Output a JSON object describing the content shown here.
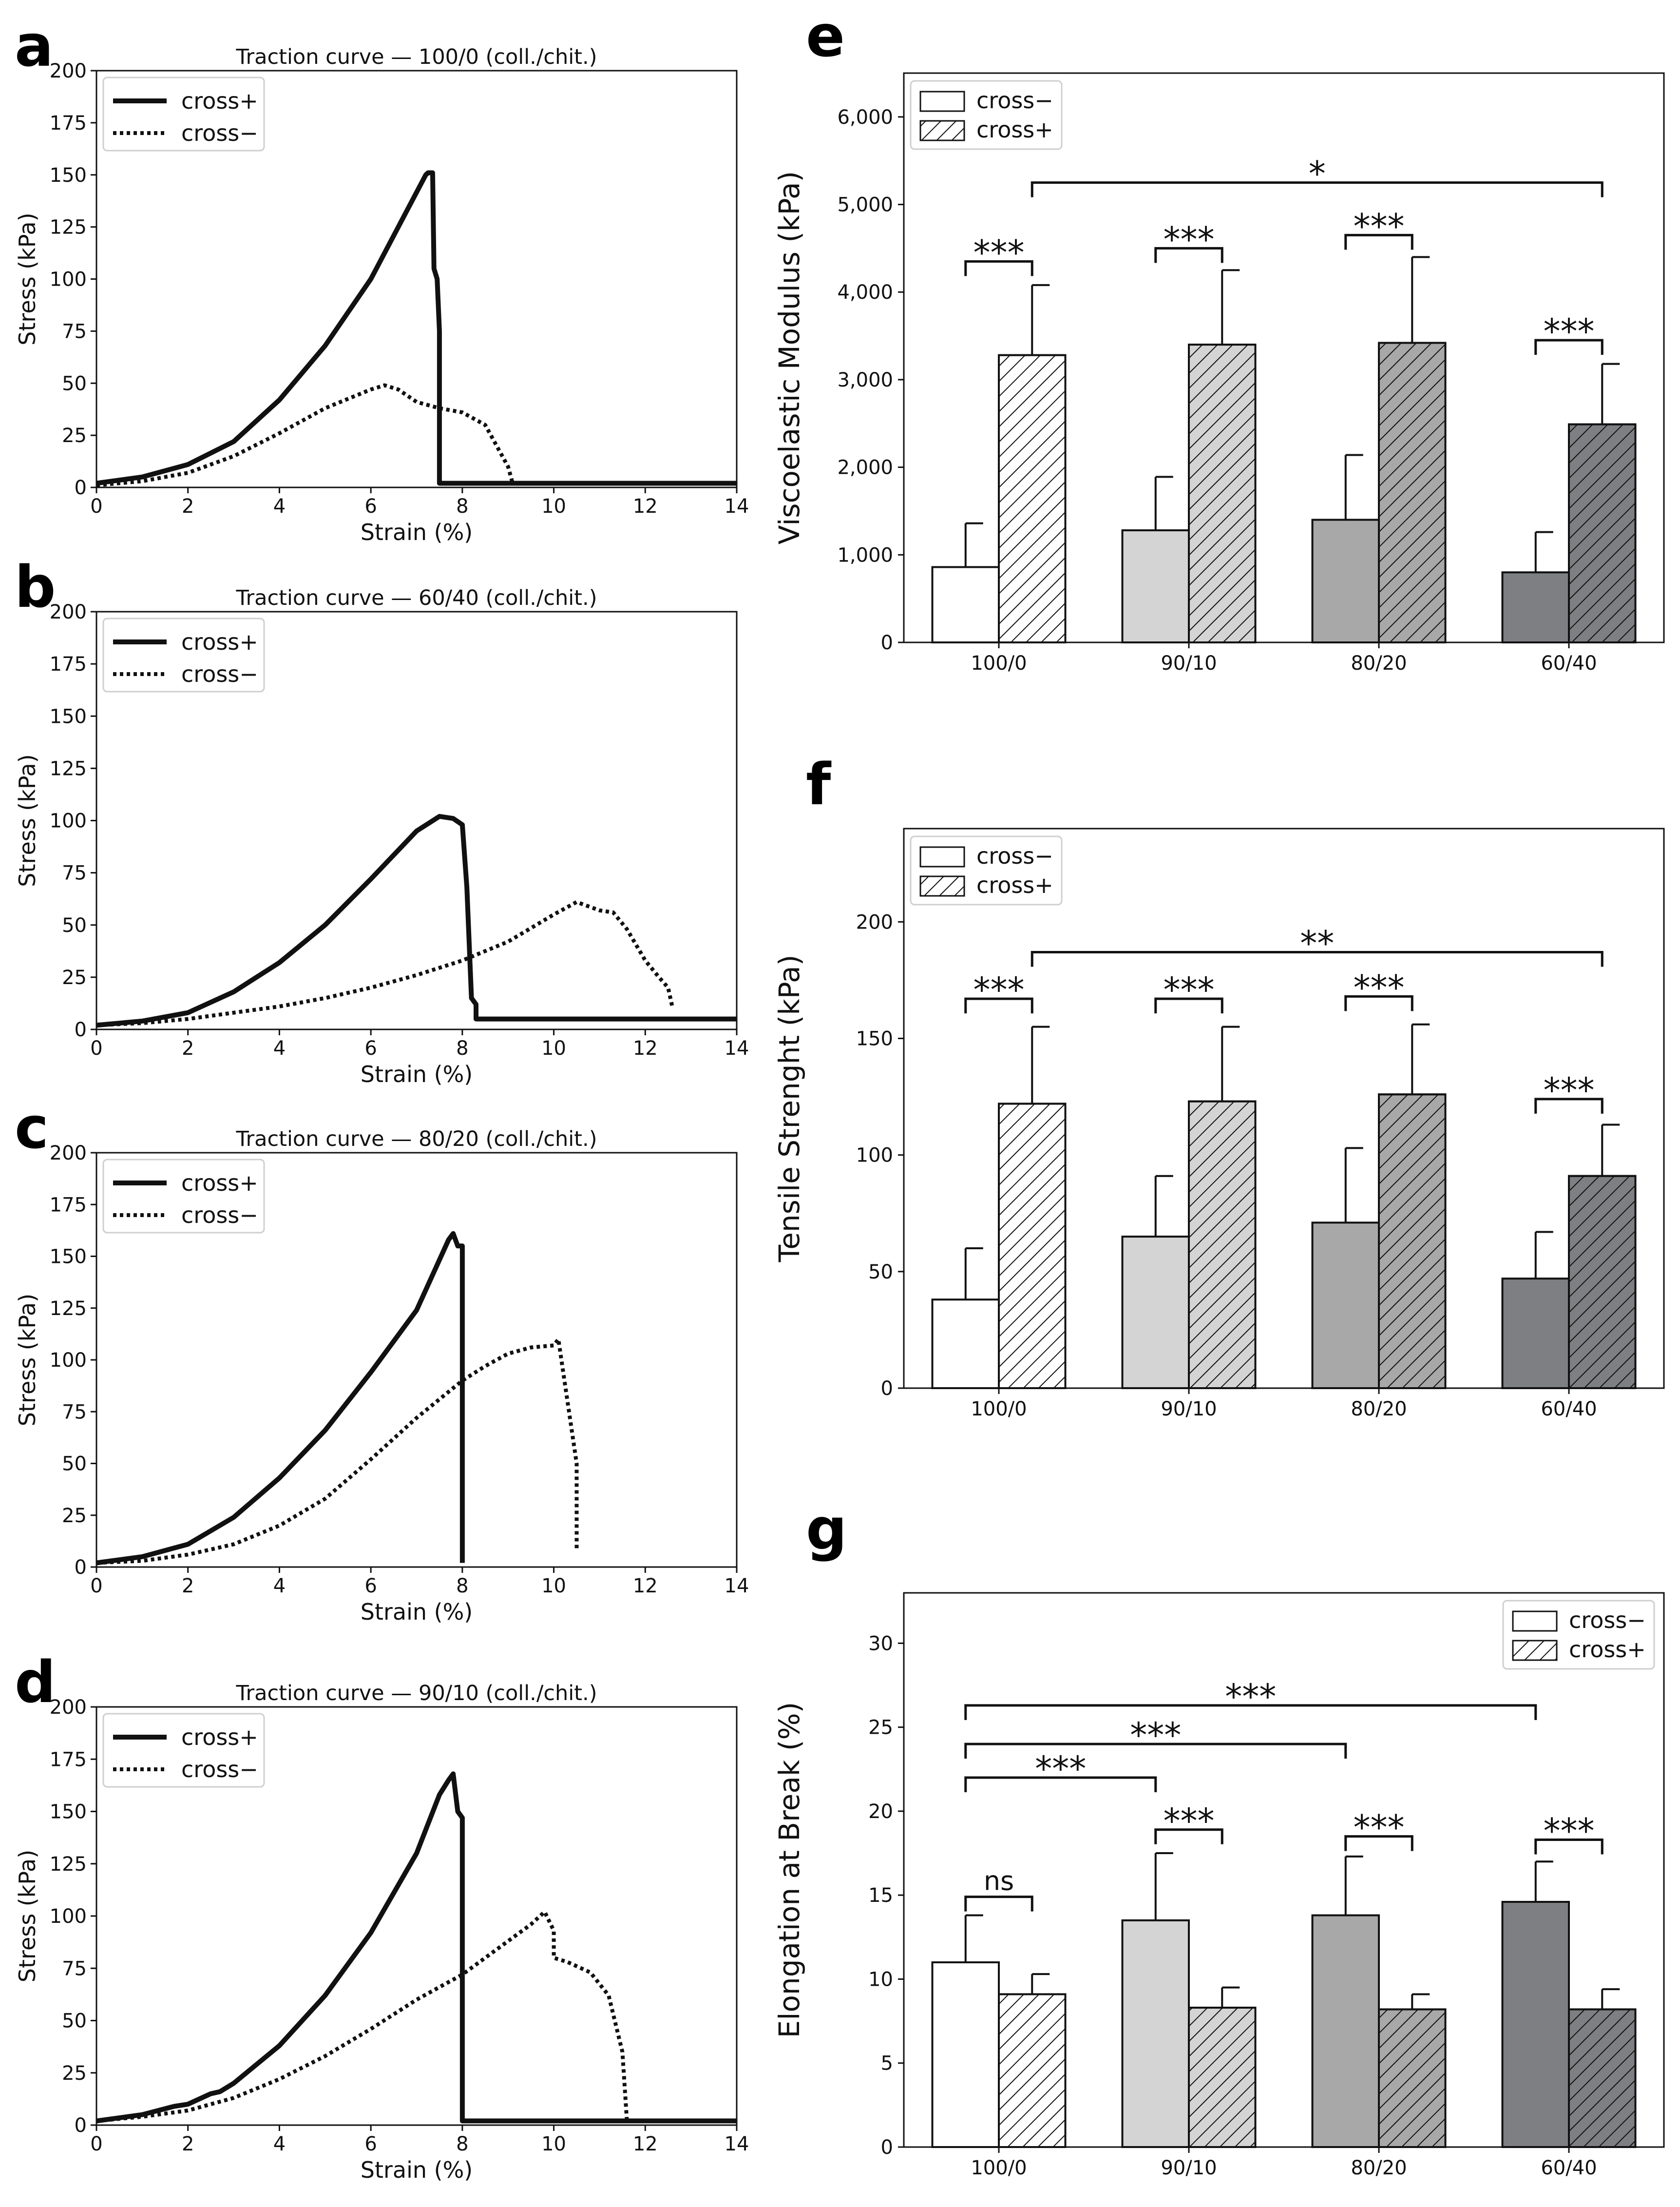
{
  "colors": {
    "ink": "#111111",
    "bar_100_0": "#ffffff",
    "bar_90_10": "#d4d4d4",
    "bar_80_20": "#a8a8a8",
    "bar_60_40": "#7d7f82"
  },
  "chart_data": [
    {
      "id": "a",
      "panel_label": "a",
      "type": "line",
      "title": "Traction curve — 100/0 (coll./chit.)",
      "xlabel": "Strain (%)",
      "ylabel": "Stress (kPa)",
      "xlim": [
        0,
        14
      ],
      "ylim": [
        0,
        200
      ],
      "xticks": [
        0,
        2,
        4,
        6,
        8,
        10,
        12,
        14
      ],
      "yticks": [
        0,
        25,
        50,
        75,
        100,
        125,
        150,
        175,
        200
      ],
      "legend": "top-left",
      "series": [
        {
          "name": "cross+",
          "style": "solid",
          "points": [
            [
              0,
              2
            ],
            [
              1,
              5
            ],
            [
              2,
              11
            ],
            [
              3,
              22
            ],
            [
              4,
              42
            ],
            [
              5,
              68
            ],
            [
              6,
              100
            ],
            [
              6.6,
              125
            ],
            [
              7.2,
              150
            ],
            [
              7.25,
              151
            ],
            [
              7.35,
              151
            ],
            [
              7.38,
              105
            ],
            [
              7.45,
              100
            ],
            [
              7.5,
              75
            ],
            [
              7.5,
              2
            ],
            [
              14,
              2
            ]
          ]
        },
        {
          "name": "cross−",
          "style": "dotted",
          "points": [
            [
              0,
              1
            ],
            [
              1,
              3
            ],
            [
              2,
              7
            ],
            [
              3,
              15
            ],
            [
              4,
              26
            ],
            [
              5,
              38
            ],
            [
              6,
              47
            ],
            [
              6.3,
              49
            ],
            [
              6.6,
              47
            ],
            [
              7,
              41
            ],
            [
              7.5,
              38
            ],
            [
              8,
              36
            ],
            [
              8.5,
              30
            ],
            [
              9,
              10
            ],
            [
              9.1,
              2
            ],
            [
              14,
              2
            ]
          ]
        }
      ]
    },
    {
      "id": "b",
      "panel_label": "b",
      "type": "line",
      "title": "Traction curve — 60/40 (coll./chit.)",
      "xlabel": "Strain (%)",
      "ylabel": "Stress (kPa)",
      "xlim": [
        0,
        14
      ],
      "ylim": [
        0,
        200
      ],
      "xticks": [
        0,
        2,
        4,
        6,
        8,
        10,
        12,
        14
      ],
      "yticks": [
        0,
        25,
        50,
        75,
        100,
        125,
        150,
        175,
        200
      ],
      "legend": "top-left",
      "series": [
        {
          "name": "cross+",
          "style": "solid",
          "points": [
            [
              0,
              2
            ],
            [
              1,
              4
            ],
            [
              2,
              8
            ],
            [
              3,
              18
            ],
            [
              4,
              32
            ],
            [
              5,
              50
            ],
            [
              6,
              72
            ],
            [
              7,
              95
            ],
            [
              7.5,
              102
            ],
            [
              7.8,
              101
            ],
            [
              8,
              98
            ],
            [
              8.1,
              68
            ],
            [
              8.2,
              15
            ],
            [
              8.3,
              12
            ],
            [
              8.3,
              5
            ],
            [
              14,
              5
            ]
          ]
        },
        {
          "name": "cross−",
          "style": "dotted",
          "points": [
            [
              0,
              2
            ],
            [
              1,
              3
            ],
            [
              2,
              5
            ],
            [
              3,
              8
            ],
            [
              4,
              11
            ],
            [
              5,
              15
            ],
            [
              6,
              20
            ],
            [
              7,
              26
            ],
            [
              8,
              33
            ],
            [
              9,
              42
            ],
            [
              10,
              55
            ],
            [
              10.5,
              61
            ],
            [
              11,
              57
            ],
            [
              11.3,
              56
            ],
            [
              11.6,
              48
            ],
            [
              12,
              33
            ],
            [
              12.3,
              25
            ],
            [
              12.5,
              20
            ],
            [
              12.6,
              10
            ]
          ]
        }
      ]
    },
    {
      "id": "c",
      "panel_label": "c",
      "type": "line",
      "title": "Traction curve — 80/20 (coll./chit.)",
      "xlabel": "Strain (%)",
      "ylabel": "Stress (kPa)",
      "xlim": [
        0,
        14
      ],
      "ylim": [
        0,
        200
      ],
      "xticks": [
        0,
        2,
        4,
        6,
        8,
        10,
        12,
        14
      ],
      "yticks": [
        0,
        25,
        50,
        75,
        100,
        125,
        150,
        175,
        200
      ],
      "legend": "top-left",
      "series": [
        {
          "name": "cross+",
          "style": "solid",
          "points": [
            [
              0,
              2
            ],
            [
              1,
              5
            ],
            [
              2,
              11
            ],
            [
              3,
              24
            ],
            [
              4,
              43
            ],
            [
              5,
              66
            ],
            [
              6,
              94
            ],
            [
              7,
              124
            ],
            [
              7.7,
              158
            ],
            [
              7.8,
              161
            ],
            [
              7.9,
              155
            ],
            [
              8,
              155
            ],
            [
              8,
              2
            ]
          ]
        },
        {
          "name": "cross−",
          "style": "dotted",
          "points": [
            [
              0,
              2
            ],
            [
              1,
              3
            ],
            [
              2,
              6
            ],
            [
              3,
              11
            ],
            [
              4,
              20
            ],
            [
              5,
              33
            ],
            [
              6,
              52
            ],
            [
              7,
              72
            ],
            [
              8,
              90
            ],
            [
              8.5,
              97
            ],
            [
              9,
              103
            ],
            [
              9.5,
              106
            ],
            [
              10,
              107
            ],
            [
              10.1,
              110
            ],
            [
              10.3,
              80
            ],
            [
              10.5,
              50
            ],
            [
              10.5,
              8
            ]
          ]
        }
      ]
    },
    {
      "id": "d",
      "panel_label": "d",
      "type": "line",
      "title": "Traction curve — 90/10 (coll./chit.)",
      "xlabel": "Strain (%)",
      "ylabel": "Stress (kPa)",
      "xlim": [
        0,
        14
      ],
      "ylim": [
        0,
        200
      ],
      "xticks": [
        0,
        2,
        4,
        6,
        8,
        10,
        12,
        14
      ],
      "yticks": [
        0,
        25,
        50,
        75,
        100,
        125,
        150,
        175,
        200
      ],
      "legend": "top-left",
      "series": [
        {
          "name": "cross+",
          "style": "solid",
          "points": [
            [
              0,
              2
            ],
            [
              1,
              5
            ],
            [
              1.7,
              9
            ],
            [
              2,
              10
            ],
            [
              2.5,
              15
            ],
            [
              2.7,
              16
            ],
            [
              3,
              20
            ],
            [
              4,
              38
            ],
            [
              5,
              62
            ],
            [
              6,
              92
            ],
            [
              7,
              130
            ],
            [
              7.5,
              158
            ],
            [
              7.7,
              165
            ],
            [
              7.8,
              168
            ],
            [
              7.9,
              150
            ],
            [
              8,
              147
            ],
            [
              8,
              2
            ],
            [
              14,
              2
            ]
          ]
        },
        {
          "name": "cross−",
          "style": "dotted",
          "points": [
            [
              0,
              2
            ],
            [
              1,
              4
            ],
            [
              2,
              7
            ],
            [
              3,
              13
            ],
            [
              4,
              22
            ],
            [
              5,
              33
            ],
            [
              6,
              46
            ],
            [
              7,
              60
            ],
            [
              8,
              72
            ],
            [
              9,
              88
            ],
            [
              9.5,
              96
            ],
            [
              9.8,
              102
            ],
            [
              10,
              93
            ],
            [
              10,
              80
            ],
            [
              10.3,
              78
            ],
            [
              10.8,
              73
            ],
            [
              11.2,
              62
            ],
            [
              11.5,
              35
            ],
            [
              11.6,
              2
            ]
          ]
        }
      ]
    },
    {
      "id": "e",
      "panel_label": "e",
      "type": "bar",
      "ylabel": "Viscoelastic Modulus (kPa)",
      "categories": [
        "100/0",
        "90/10",
        "80/20",
        "60/40"
      ],
      "ylim": [
        0,
        6500
      ],
      "yticks": [
        0,
        1000,
        2000,
        3000,
        4000,
        5000,
        6000
      ],
      "ytick_labels": [
        "0",
        "1,000",
        "2,000",
        "3,000",
        "4,000",
        "5,000",
        "6,000"
      ],
      "legend": "top-left",
      "series": [
        {
          "name": "cross−",
          "pattern": "plain",
          "values": [
            860,
            1280,
            1400,
            800
          ],
          "errors": [
            500,
            610,
            740,
            460
          ]
        },
        {
          "name": "cross+",
          "pattern": "hatch",
          "values": [
            3280,
            3400,
            3420,
            2490
          ],
          "errors": [
            800,
            850,
            980,
            690
          ]
        }
      ],
      "annotations": [
        {
          "text": "***",
          "from": [
            0,
            0
          ],
          "to": [
            0,
            1
          ],
          "level": 4350
        },
        {
          "text": "***",
          "from": [
            1,
            0
          ],
          "to": [
            1,
            1
          ],
          "level": 4500
        },
        {
          "text": "***",
          "from": [
            2,
            0
          ],
          "to": [
            2,
            1
          ],
          "level": 4650
        },
        {
          "text": "***",
          "from": [
            3,
            0
          ],
          "to": [
            3,
            1
          ],
          "level": 3450
        },
        {
          "text": "*",
          "from": [
            0,
            1
          ],
          "to": [
            3,
            1
          ],
          "level": 5250
        }
      ]
    },
    {
      "id": "f",
      "panel_label": "f",
      "type": "bar",
      "ylabel": "Tensile Strenght (kPa)",
      "categories": [
        "100/0",
        "90/10",
        "80/20",
        "60/40"
      ],
      "ylim": [
        0,
        240
      ],
      "yticks": [
        0,
        50,
        100,
        150,
        200
      ],
      "ytick_labels": [
        "0",
        "50",
        "100",
        "150",
        "200"
      ],
      "legend": "top-left",
      "series": [
        {
          "name": "cross−",
          "pattern": "plain",
          "values": [
            38,
            65,
            71,
            47
          ],
          "errors": [
            22,
            26,
            32,
            20
          ]
        },
        {
          "name": "cross+",
          "pattern": "hatch",
          "values": [
            122,
            123,
            126,
            91
          ],
          "errors": [
            33,
            32,
            30,
            22
          ]
        }
      ],
      "annotations": [
        {
          "text": "***",
          "from": [
            0,
            0
          ],
          "to": [
            0,
            1
          ],
          "level": 167
        },
        {
          "text": "***",
          "from": [
            1,
            0
          ],
          "to": [
            1,
            1
          ],
          "level": 167
        },
        {
          "text": "***",
          "from": [
            2,
            0
          ],
          "to": [
            2,
            1
          ],
          "level": 168
        },
        {
          "text": "***",
          "from": [
            3,
            0
          ],
          "to": [
            3,
            1
          ],
          "level": 124
        },
        {
          "text": "**",
          "from": [
            0,
            1
          ],
          "to": [
            3,
            1
          ],
          "level": 187
        }
      ]
    },
    {
      "id": "g",
      "panel_label": "g",
      "type": "bar",
      "ylabel": "Elongation at Break (%)",
      "categories": [
        "100/0",
        "90/10",
        "80/20",
        "60/40"
      ],
      "ylim": [
        0,
        33
      ],
      "yticks": [
        0,
        5,
        10,
        15,
        20,
        25,
        30
      ],
      "ytick_labels": [
        "0",
        "5",
        "10",
        "15",
        "20",
        "25",
        "30"
      ],
      "legend": "top-right",
      "series": [
        {
          "name": "cross−",
          "pattern": "plain",
          "values": [
            11.0,
            13.5,
            13.8,
            14.6
          ],
          "errors": [
            2.8,
            4.0,
            3.5,
            2.4
          ]
        },
        {
          "name": "cross+",
          "pattern": "hatch",
          "values": [
            9.1,
            8.3,
            8.2,
            8.2
          ],
          "errors": [
            1.2,
            1.2,
            0.9,
            1.2
          ]
        }
      ],
      "annotations": [
        {
          "text": "ns",
          "from": [
            0,
            0
          ],
          "to": [
            0,
            1
          ],
          "level": 14.9
        },
        {
          "text": "***",
          "from": [
            1,
            0
          ],
          "to": [
            1,
            1
          ],
          "level": 18.9
        },
        {
          "text": "***",
          "from": [
            2,
            0
          ],
          "to": [
            2,
            1
          ],
          "level": 18.5
        },
        {
          "text": "***",
          "from": [
            3,
            0
          ],
          "to": [
            3,
            1
          ],
          "level": 18.3
        },
        {
          "text": "***",
          "from": [
            0,
            0
          ],
          "to": [
            1,
            0
          ],
          "level": 22.0
        },
        {
          "text": "***",
          "from": [
            0,
            0
          ],
          "to": [
            2,
            0
          ],
          "level": 24.0
        },
        {
          "text": "***",
          "from": [
            0,
            0
          ],
          "to": [
            3,
            0
          ],
          "level": 26.3
        }
      ]
    }
  ]
}
